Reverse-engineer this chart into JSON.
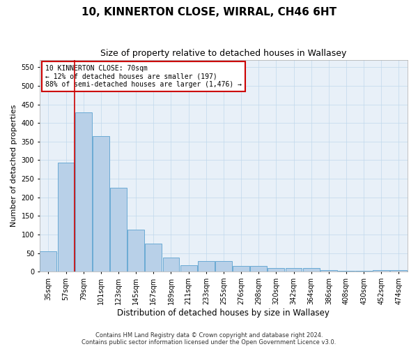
{
  "title": "10, KINNERTON CLOSE, WIRRAL, CH46 6HT",
  "subtitle": "Size of property relative to detached houses in Wallasey",
  "xlabel": "Distribution of detached houses by size in Wallasey",
  "ylabel": "Number of detached properties",
  "categories": [
    "35sqm",
    "57sqm",
    "79sqm",
    "101sqm",
    "123sqm",
    "145sqm",
    "167sqm",
    "189sqm",
    "211sqm",
    "233sqm",
    "255sqm",
    "276sqm",
    "298sqm",
    "320sqm",
    "342sqm",
    "364sqm",
    "386sqm",
    "408sqm",
    "430sqm",
    "452sqm",
    "474sqm"
  ],
  "values": [
    55,
    293,
    428,
    365,
    225,
    113,
    76,
    38,
    17,
    28,
    28,
    15,
    15,
    10,
    10,
    10,
    5,
    3,
    3,
    5,
    4
  ],
  "bar_color": "#b8d0e8",
  "bar_edge_color": "#6aaad4",
  "red_line_index": 1.5,
  "annotation_text": "10 KINNERTON CLOSE: 70sqm\n← 12% of detached houses are smaller (197)\n88% of semi-detached houses are larger (1,476) →",
  "annotation_box_color": "#ffffff",
  "annotation_box_edge": "#cc0000",
  "ylim": [
    0,
    570
  ],
  "yticks": [
    0,
    50,
    100,
    150,
    200,
    250,
    300,
    350,
    400,
    450,
    500,
    550
  ],
  "footer_line1": "Contains HM Land Registry data © Crown copyright and database right 2024.",
  "footer_line2": "Contains public sector information licensed under the Open Government Licence v3.0.",
  "title_fontsize": 11,
  "subtitle_fontsize": 9,
  "tick_fontsize": 7,
  "ylabel_fontsize": 8,
  "xlabel_fontsize": 8.5,
  "footer_fontsize": 6,
  "annot_fontsize": 7
}
